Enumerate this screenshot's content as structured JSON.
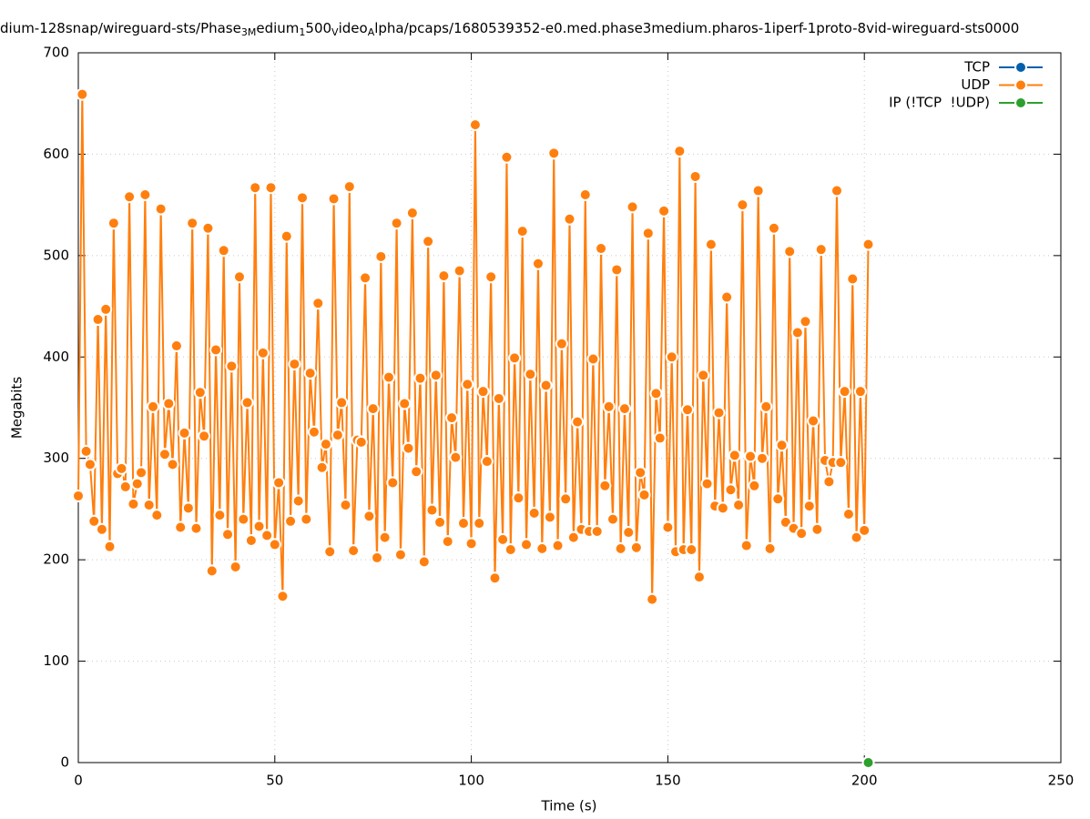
{
  "chart_data": {
    "type": "line",
    "title_parts": [
      "dium-128snap/wireguard-sts/Phase",
      "3M",
      "edium",
      "1",
      "500",
      "V",
      "ideo",
      "A",
      "lpha/pcaps/1680539352-e0.med.phase3medium.pharos-1iperf-1proto-8vid-wireguard-sts0000"
    ],
    "x_label": "Time (s)",
    "y_label": "Megabits",
    "xlim": [
      0,
      250
    ],
    "xticks": [
      0,
      50,
      100,
      150,
      200,
      250
    ],
    "ylim": [
      0,
      700
    ],
    "yticks": [
      0,
      100,
      200,
      300,
      400,
      500,
      600,
      700
    ],
    "grid": true,
    "legend": "top-right",
    "series": [
      {
        "name": "TCP",
        "color": "#0060ad",
        "x": [],
        "values": []
      },
      {
        "name": "UDP",
        "color": "#ff7f0e",
        "x": [
          0,
          1,
          2,
          3,
          4,
          5,
          6,
          7,
          8,
          9,
          10,
          11,
          12,
          13,
          14,
          15,
          16,
          17,
          18,
          19,
          20,
          21,
          22,
          23,
          24,
          25,
          26,
          27,
          28,
          29,
          30,
          31,
          32,
          33,
          34,
          35,
          36,
          37,
          38,
          39,
          40,
          41,
          42,
          43,
          44,
          45,
          46,
          47,
          48,
          49,
          50,
          51,
          52,
          53,
          54,
          55,
          56,
          57,
          58,
          59,
          60,
          61,
          62,
          63,
          64,
          65,
          66,
          67,
          68,
          69,
          70,
          71,
          72,
          73,
          74,
          75,
          76,
          77,
          78,
          79,
          80,
          81,
          82,
          83,
          84,
          85,
          86,
          87,
          88,
          89,
          90,
          91,
          92,
          93,
          94,
          95,
          96,
          97,
          98,
          99,
          100,
          101,
          102,
          103,
          104,
          105,
          106,
          107,
          108,
          109,
          110,
          111,
          112,
          113,
          114,
          115,
          116,
          117,
          118,
          119,
          120,
          121,
          122,
          123,
          124,
          125,
          126,
          127,
          128,
          129,
          130,
          131,
          132,
          133,
          134,
          135,
          136,
          137,
          138,
          139,
          140,
          141,
          142,
          143,
          144,
          145,
          146,
          147,
          148,
          149,
          150,
          151,
          152,
          153,
          154,
          155,
          156,
          157,
          158,
          159,
          160,
          161,
          162,
          163,
          164,
          165,
          166,
          167,
          168,
          169,
          170,
          171,
          172,
          173,
          174,
          175,
          176,
          177,
          178,
          179,
          180,
          181,
          182,
          183,
          184,
          185,
          186,
          187,
          188,
          189,
          190,
          191,
          192,
          193,
          194,
          195,
          196,
          197,
          198,
          199,
          200,
          201
        ],
        "values": [
          263,
          659,
          307,
          294,
          238,
          437,
          230,
          447,
          213,
          532,
          285,
          290,
          272,
          558,
          255,
          275,
          286,
          560,
          254,
          351,
          244,
          546,
          304,
          354,
          294,
          411,
          232,
          325,
          251,
          532,
          231,
          365,
          322,
          527,
          189,
          407,
          244,
          505,
          225,
          391,
          193,
          479,
          240,
          355,
          219,
          567,
          233,
          404,
          224,
          567,
          215,
          276,
          164,
          519,
          238,
          393,
          258,
          557,
          240,
          384,
          326,
          453,
          291,
          314,
          208,
          556,
          323,
          355,
          254,
          568,
          209,
          318,
          316,
          478,
          243,
          349,
          202,
          499,
          222,
          380,
          276,
          532,
          205,
          354,
          310,
          542,
          287,
          379,
          198,
          514,
          249,
          382,
          237,
          480,
          218,
          340,
          301,
          485,
          236,
          373,
          216,
          629,
          236,
          366,
          297,
          479,
          182,
          359,
          220,
          597,
          210,
          399,
          261,
          524,
          215,
          383,
          246,
          492,
          211,
          372,
          242,
          601,
          214,
          413,
          260,
          536,
          222,
          336,
          230,
          560,
          228,
          398,
          228,
          507,
          273,
          351,
          240,
          486,
          211,
          349,
          227,
          548,
          212,
          286,
          264,
          522,
          161,
          364,
          320,
          544,
          232,
          400,
          208,
          603,
          210,
          348,
          210,
          578,
          183,
          382,
          275,
          511,
          253,
          345,
          251,
          459,
          269,
          303,
          254,
          550,
          214,
          302,
          273,
          564,
          300,
          351,
          211,
          527,
          260,
          313,
          237,
          504,
          231,
          424,
          226,
          435,
          253,
          337,
          230,
          506,
          298,
          277,
          296,
          564,
          296,
          366,
          245,
          477,
          222,
          366,
          229,
          511
        ]
      },
      {
        "name": "IP (!TCP  !UDP)",
        "color": "#2ca02c",
        "x": [
          201
        ],
        "values": [
          0
        ]
      }
    ]
  }
}
